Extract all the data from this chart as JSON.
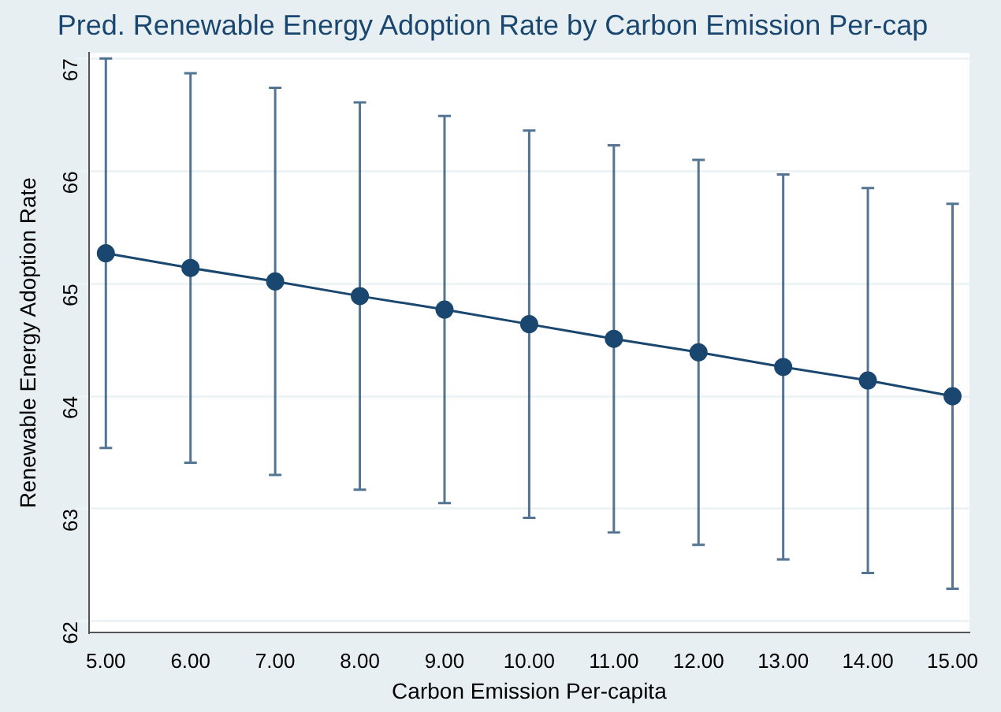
{
  "chart_data": {
    "type": "line",
    "title": "Pred. Renewable Energy Adoption Rate by Carbon Emission Per-cap",
    "xlabel": "Carbon Emission Per-capita",
    "ylabel": "Renewable Energy Adoption Rate",
    "x": [
      5,
      6,
      7,
      8,
      9,
      10,
      11,
      12,
      13,
      14,
      15
    ],
    "series": [
      {
        "color": "#1a476f",
        "values": [
          65.27,
          65.14,
          65.02,
          64.89,
          64.77,
          64.64,
          64.51,
          64.39,
          64.26,
          64.14,
          64.0
        ],
        "errors": [
          1.73,
          1.73,
          1.72,
          1.72,
          1.72,
          1.72,
          1.72,
          1.71,
          1.71,
          1.71,
          1.71
        ]
      }
    ],
    "xlim": [
      4.8,
      15.2
    ],
    "xticks": [
      {
        "value": 5,
        "label": "5.00"
      },
      {
        "value": 6,
        "label": "6.00"
      },
      {
        "value": 7,
        "label": "7.00"
      },
      {
        "value": 8,
        "label": "8.00"
      },
      {
        "value": 9,
        "label": "9.00"
      },
      {
        "value": 10,
        "label": "10.00"
      },
      {
        "value": 11,
        "label": "11.00"
      },
      {
        "value": 12,
        "label": "12.00"
      },
      {
        "value": 13,
        "label": "13.00"
      },
      {
        "value": 14,
        "label": "14.00"
      },
      {
        "value": 15,
        "label": "15.00"
      }
    ],
    "ylim": [
      61.9,
      67.05
    ],
    "yticks": [
      62,
      63,
      64,
      65,
      66,
      67
    ],
    "grid": "y",
    "legend": false,
    "marker": "circle",
    "line_style": "solid"
  }
}
